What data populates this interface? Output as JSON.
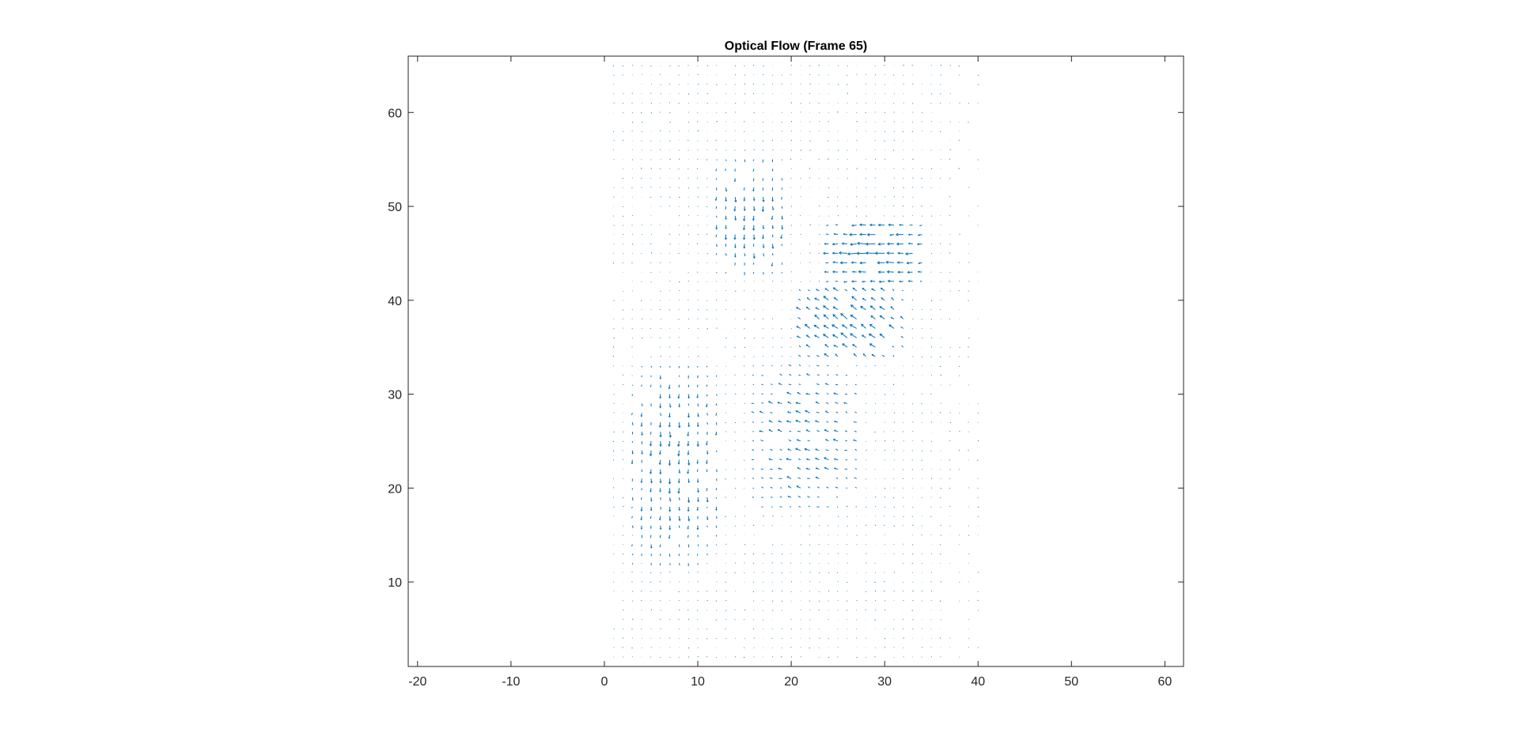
{
  "chart_data": {
    "type": "quiver",
    "title": "Optical Flow (Frame 65)",
    "xlabel": "",
    "ylabel": "",
    "xlim": [
      -21,
      62
    ],
    "ylim": [
      1,
      66
    ],
    "xticks": [
      -20,
      -10,
      0,
      10,
      20,
      30,
      40,
      50,
      60
    ],
    "yticks": [
      10,
      20,
      30,
      40,
      50,
      60
    ],
    "xtick_labels": [
      "-20",
      "-10",
      "0",
      "10",
      "20",
      "30",
      "40",
      "50",
      "60"
    ],
    "ytick_labels": [
      "10",
      "20",
      "30",
      "40",
      "50",
      "60"
    ],
    "grid": false,
    "box": true,
    "arrow_color": "#0072BD",
    "axis_color": "#262626",
    "field": {
      "x_range": [
        1,
        40
      ],
      "y_range": [
        2,
        65
      ],
      "step": 1,
      "description_regions": [
        {
          "name": "strong-leftward-flow",
          "x": [
            24,
            34
          ],
          "y": [
            42,
            48
          ],
          "u": -1.6,
          "v": 0.0
        },
        {
          "name": "diagonal-flow",
          "x": [
            21,
            32
          ],
          "y": [
            34,
            41
          ],
          "u": -1.1,
          "v": 0.8
        },
        {
          "name": "vertical-flow-top",
          "x": [
            12,
            19
          ],
          "y": [
            43,
            55
          ],
          "u": 0.0,
          "v": -0.9
        },
        {
          "name": "vertical-flow-bottom",
          "x": [
            3,
            12
          ],
          "y": [
            12,
            33
          ],
          "u": 0.0,
          "v": -0.9
        },
        {
          "name": "moderate-flow-middle",
          "x": [
            16,
            27
          ],
          "y": [
            18,
            33
          ],
          "u": -0.8,
          "v": 0.3
        }
      ]
    }
  }
}
